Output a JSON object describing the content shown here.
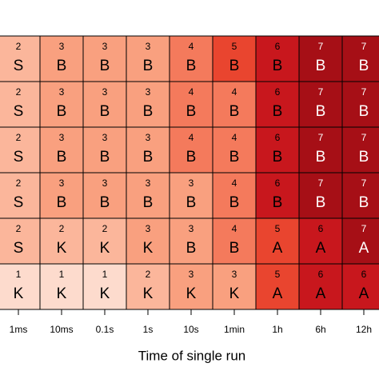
{
  "chart_data": {
    "type": "heatmap",
    "xlabel": "Time of single run",
    "categories": [
      "1ms",
      "10ms",
      "0.1s",
      "1s",
      "10s",
      "1min",
      "1h",
      "6h",
      "12h"
    ],
    "values": [
      [
        2,
        3,
        3,
        3,
        4,
        5,
        6,
        7,
        7
      ],
      [
        2,
        3,
        3,
        3,
        4,
        4,
        6,
        7,
        7
      ],
      [
        2,
        3,
        3,
        3,
        4,
        4,
        6,
        7,
        7
      ],
      [
        2,
        3,
        3,
        3,
        3,
        4,
        6,
        7,
        7
      ],
      [
        2,
        2,
        2,
        3,
        3,
        4,
        5,
        6,
        7
      ],
      [
        1,
        1,
        1,
        2,
        3,
        3,
        5,
        6,
        6
      ]
    ],
    "labels": [
      [
        "S",
        "B",
        "B",
        "B",
        "B",
        "B",
        "B",
        "B",
        "B"
      ],
      [
        "S",
        "B",
        "B",
        "B",
        "B",
        "B",
        "B",
        "B",
        "B"
      ],
      [
        "S",
        "B",
        "B",
        "B",
        "B",
        "B",
        "B",
        "B",
        "B"
      ],
      [
        "S",
        "B",
        "B",
        "B",
        "B",
        "B",
        "B",
        "B",
        "B"
      ],
      [
        "S",
        "K",
        "K",
        "K",
        "B",
        "B",
        "A",
        "A",
        "A"
      ],
      [
        "K",
        "K",
        "K",
        "K",
        "K",
        "K",
        "A",
        "A",
        "A"
      ]
    ],
    "colors": {
      "1": "#fddbcd",
      "2": "#fbb69b",
      "3": "#f9a07f",
      "4": "#f47a5c",
      "5": "#e9452f",
      "6": "#c8171d",
      "7": "#a60f16"
    },
    "light_text_from": 7
  }
}
